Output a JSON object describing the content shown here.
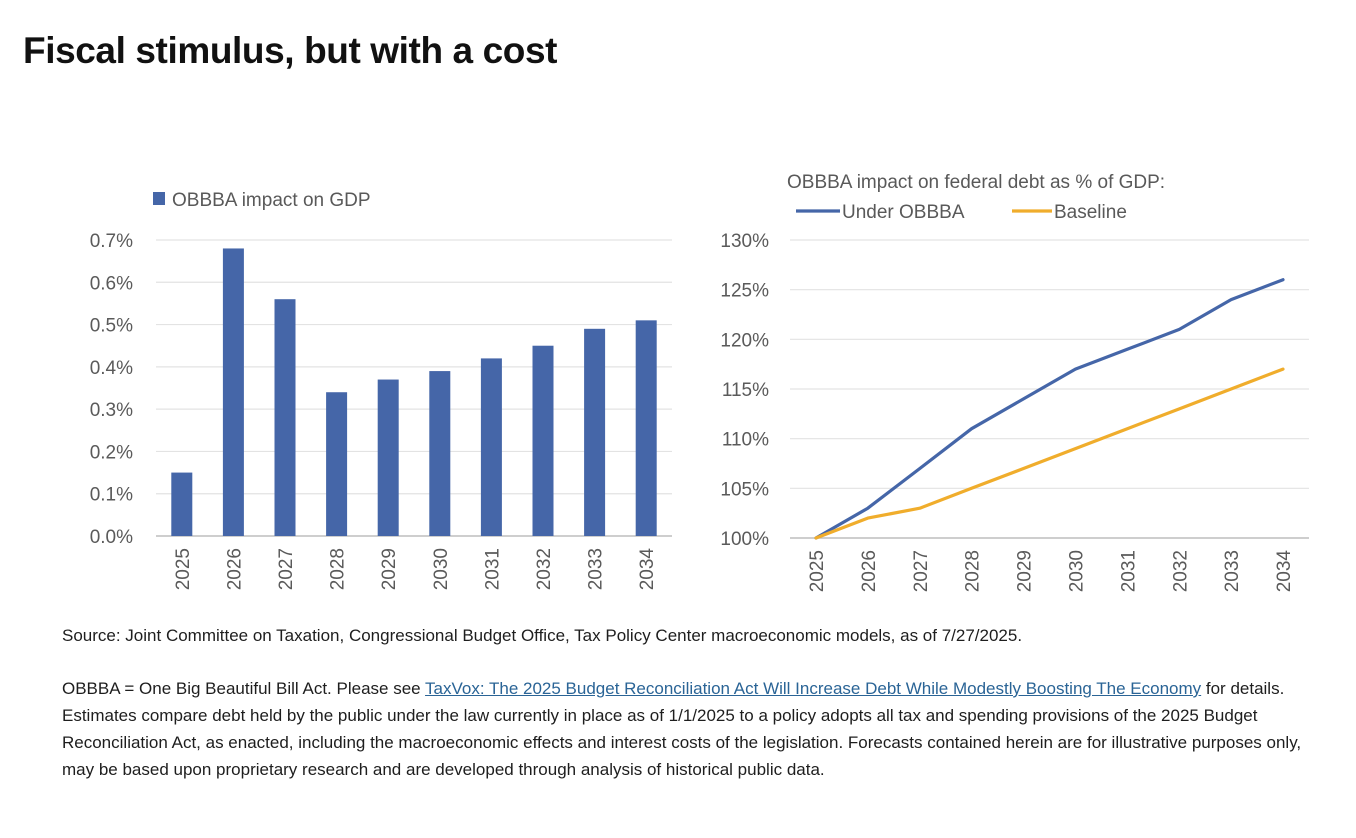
{
  "page": {
    "title": "Fiscal stimulus, but with a cost"
  },
  "colors": {
    "bar": "#4566a8",
    "under_obbba": "#4566a8",
    "baseline": "#f0ad2c",
    "link": "#2a6496"
  },
  "chart_data": [
    {
      "type": "bar",
      "title": "",
      "legend": [
        "OBBBA impact on GDP"
      ],
      "legend_position": "top-left",
      "categories": [
        "2025",
        "2026",
        "2027",
        "2028",
        "2029",
        "2030",
        "2031",
        "2032",
        "2033",
        "2034"
      ],
      "series": [
        {
          "name": "OBBBA impact on GDP",
          "values": [
            0.15,
            0.68,
            0.56,
            0.34,
            0.37,
            0.39,
            0.42,
            0.45,
            0.49,
            0.51
          ]
        }
      ],
      "ylim": [
        0,
        0.7
      ],
      "yticks": [
        0,
        0.1,
        0.2,
        0.3,
        0.4,
        0.5,
        0.6,
        0.7
      ],
      "ytick_labels": [
        "0.0%",
        "0.1%",
        "0.2%",
        "0.3%",
        "0.4%",
        "0.5%",
        "0.6%",
        "0.7%"
      ],
      "grid": true
    },
    {
      "type": "line",
      "title": "OBBBA impact on federal debt as % of GDP:",
      "legend_position": "top-left",
      "categories": [
        "2025",
        "2026",
        "2027",
        "2028",
        "2029",
        "2030",
        "2031",
        "2032",
        "2033",
        "2034"
      ],
      "series": [
        {
          "name": "Under OBBBA",
          "values": [
            100,
            103,
            107,
            111,
            114,
            117,
            119,
            121,
            124,
            126
          ]
        },
        {
          "name": "Baseline",
          "values": [
            100,
            102,
            103,
            105,
            107,
            109,
            111,
            113,
            115,
            117
          ]
        }
      ],
      "ylim": [
        100,
        130
      ],
      "yticks": [
        100,
        105,
        110,
        115,
        120,
        125,
        130
      ],
      "ytick_labels": [
        "100%",
        "105%",
        "110%",
        "115%",
        "120%",
        "125%",
        "130%"
      ],
      "grid": true
    }
  ],
  "footnotes": {
    "source": "Source: Joint Committee on Taxation, Congressional Budget Office, Tax Policy Center macroeconomic models, as of 7/27/2025.",
    "note_prefix": "OBBBA = One Big Beautiful Bill Act. Please see ",
    "link_text": "TaxVox: The 2025 Budget Reconciliation Act Will Increase Debt While Modestly Boosting The Economy",
    "note_suffix": " for details. Estimates compare debt held by the public under the law currently in place as of 1/1/2025 to a policy adopts all tax and spending provisions of the 2025 Budget Reconciliation Act, as enacted, including the macroeconomic effects and interest costs of the legislation. Forecasts contained herein are for illustrative purposes only, may be based upon proprietary research and are developed through analysis of historical public data."
  }
}
